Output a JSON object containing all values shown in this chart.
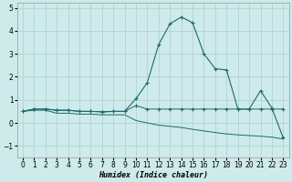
{
  "xlabel": "Humidex (Indice chaleur)",
  "background_color": "#ceeaea",
  "grid_color": "#aed4d4",
  "line_color": "#1a6b6b",
  "x": [
    0,
    1,
    2,
    3,
    4,
    5,
    6,
    7,
    8,
    9,
    10,
    11,
    12,
    13,
    14,
    15,
    16,
    17,
    18,
    19,
    20,
    21,
    22,
    23
  ],
  "y_main": [
    0.5,
    0.6,
    0.6,
    0.55,
    0.55,
    0.5,
    0.5,
    0.48,
    0.5,
    0.5,
    1.05,
    1.75,
    3.4,
    4.3,
    4.6,
    4.35,
    3.0,
    2.35,
    2.3,
    0.6,
    0.6,
    1.4,
    0.65,
    -0.65
  ],
  "y_flat": [
    0.5,
    0.6,
    0.6,
    0.55,
    0.55,
    0.5,
    0.5,
    0.48,
    0.5,
    0.5,
    0.75,
    0.6,
    0.6,
    0.6,
    0.6,
    0.6,
    0.6,
    0.6,
    0.6,
    0.6,
    0.6,
    0.6,
    0.6,
    0.6
  ],
  "y_decline": [
    0.5,
    0.55,
    0.55,
    0.42,
    0.42,
    0.38,
    0.38,
    0.35,
    0.35,
    0.35,
    0.1,
    0.0,
    -0.1,
    -0.15,
    -0.2,
    -0.28,
    -0.35,
    -0.42,
    -0.48,
    -0.52,
    -0.55,
    -0.58,
    -0.62,
    -0.7
  ],
  "ylim": [
    -1.5,
    5.2
  ],
  "xlim": [
    -0.5,
    23.5
  ],
  "yticks": [
    -1,
    0,
    1,
    2,
    3,
    4,
    5
  ],
  "xticks": [
    0,
    1,
    2,
    3,
    4,
    5,
    6,
    7,
    8,
    9,
    10,
    11,
    12,
    13,
    14,
    15,
    16,
    17,
    18,
    19,
    20,
    21,
    22,
    23
  ],
  "label_fontsize": 6,
  "tick_fontsize": 5.5
}
